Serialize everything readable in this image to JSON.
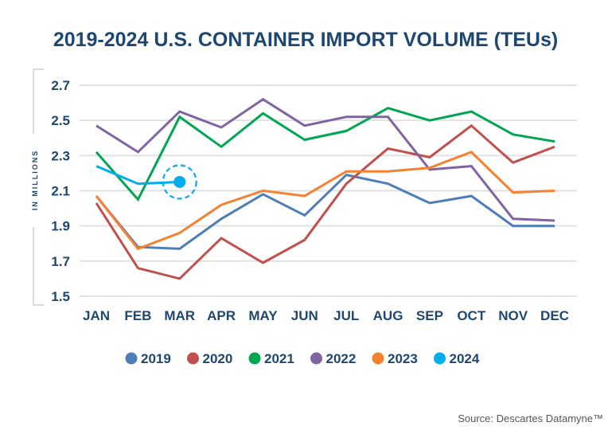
{
  "chart_data": {
    "type": "line",
    "title": "2019-2024 U.S. CONTAINER IMPORT VOLUME (TEUs)",
    "xlabel": "",
    "ylabel": "IN MILLIONS",
    "ylim": [
      1.5,
      2.7
    ],
    "yticks": [
      "2.7",
      "2.5",
      "2.3",
      "2.1",
      "1.9",
      "1.7",
      "1.5"
    ],
    "ytick_values": [
      2.7,
      2.5,
      2.3,
      2.1,
      1.9,
      1.7,
      1.5
    ],
    "grid": true,
    "legend_position": "bottom",
    "categories": [
      "JAN",
      "FEB",
      "MAR",
      "APR",
      "MAY",
      "JUN",
      "JUL",
      "AUG",
      "SEP",
      "OCT",
      "NOV",
      "DEC"
    ],
    "series": [
      {
        "name": "2019",
        "color": "#4f7db5",
        "values": [
          2.07,
          1.78,
          1.77,
          1.94,
          2.08,
          1.96,
          2.19,
          2.14,
          2.03,
          2.07,
          1.9,
          1.9
        ]
      },
      {
        "name": "2020",
        "color": "#c0504d",
        "values": [
          2.03,
          1.66,
          1.6,
          1.83,
          1.69,
          1.82,
          2.14,
          2.34,
          2.29,
          2.47,
          2.26,
          2.35
        ]
      },
      {
        "name": "2021",
        "color": "#00a651",
        "values": [
          2.32,
          2.05,
          2.52,
          2.35,
          2.54,
          2.39,
          2.44,
          2.57,
          2.5,
          2.55,
          2.42,
          2.38
        ]
      },
      {
        "name": "2022",
        "color": "#8064a2",
        "values": [
          2.47,
          2.32,
          2.55,
          2.46,
          2.62,
          2.47,
          2.52,
          2.52,
          2.22,
          2.24,
          1.94,
          1.93
        ]
      },
      {
        "name": "2023",
        "color": "#f58232",
        "values": [
          2.07,
          1.77,
          1.86,
          2.02,
          2.1,
          2.07,
          2.21,
          2.21,
          2.23,
          2.32,
          2.09,
          2.1
        ]
      },
      {
        "name": "2024",
        "color": "#00adef",
        "values": [
          2.24,
          2.14,
          2.15
        ],
        "highlight_last": true
      }
    ],
    "source": "Source: Descartes Datamyne™"
  }
}
